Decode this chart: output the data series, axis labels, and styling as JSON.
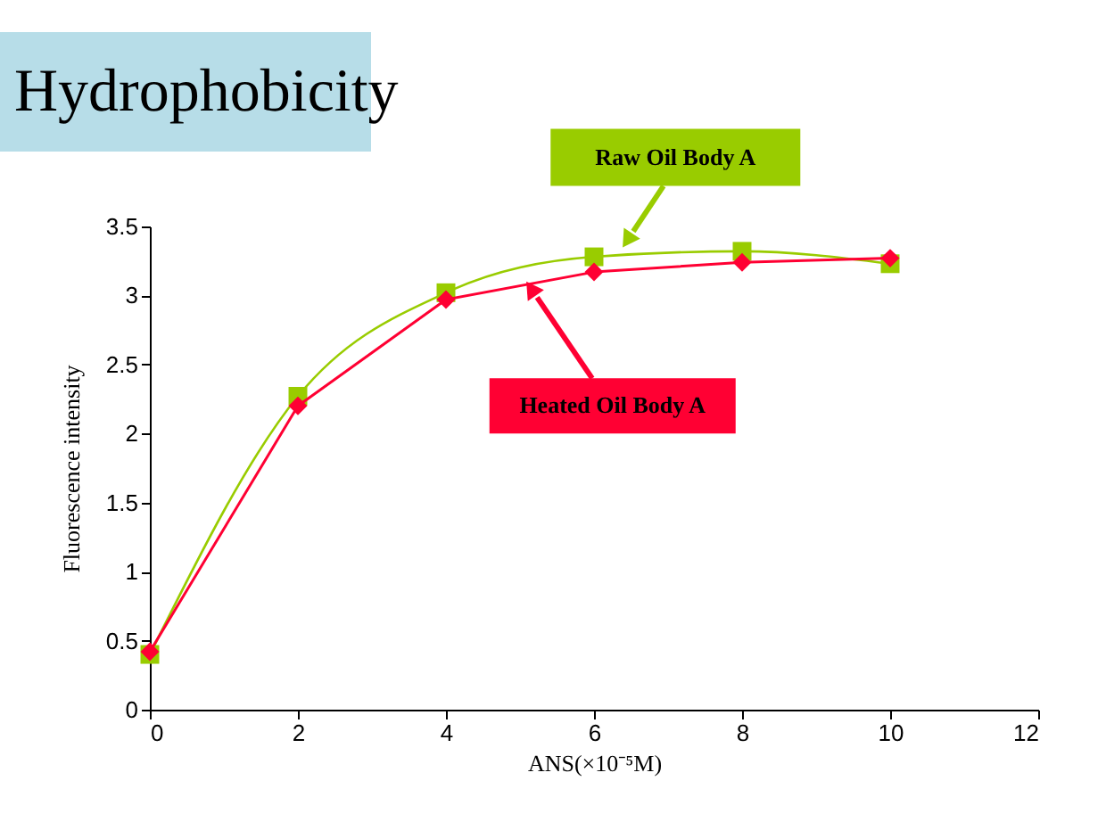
{
  "chart_data": {
    "type": "line",
    "title": "Hydrophobicity",
    "xlabel": "ANS(×10⁻⁵M)",
    "ylabel": "Fluorescence intensity",
    "x": [
      0,
      2,
      4,
      6,
      8,
      10
    ],
    "series": [
      {
        "name": "Raw Oil Body A",
        "color": "#99cc00",
        "marker": "square",
        "values": [
          0.4,
          2.27,
          3.02,
          3.28,
          3.32,
          3.23
        ]
      },
      {
        "name": "Heated Oil Body A",
        "color": "#ff0033",
        "marker": "diamond",
        "values": [
          0.42,
          2.2,
          2.97,
          3.17,
          3.24,
          3.27
        ]
      }
    ],
    "xlim": [
      0,
      12
    ],
    "xticks": [
      0,
      2,
      4,
      6,
      8,
      10,
      12
    ],
    "ylim": [
      0,
      3.5
    ],
    "yticks": [
      0,
      0.5,
      1,
      1.5,
      2,
      2.5,
      3,
      3.5
    ],
    "grid": false,
    "legend": false
  }
}
